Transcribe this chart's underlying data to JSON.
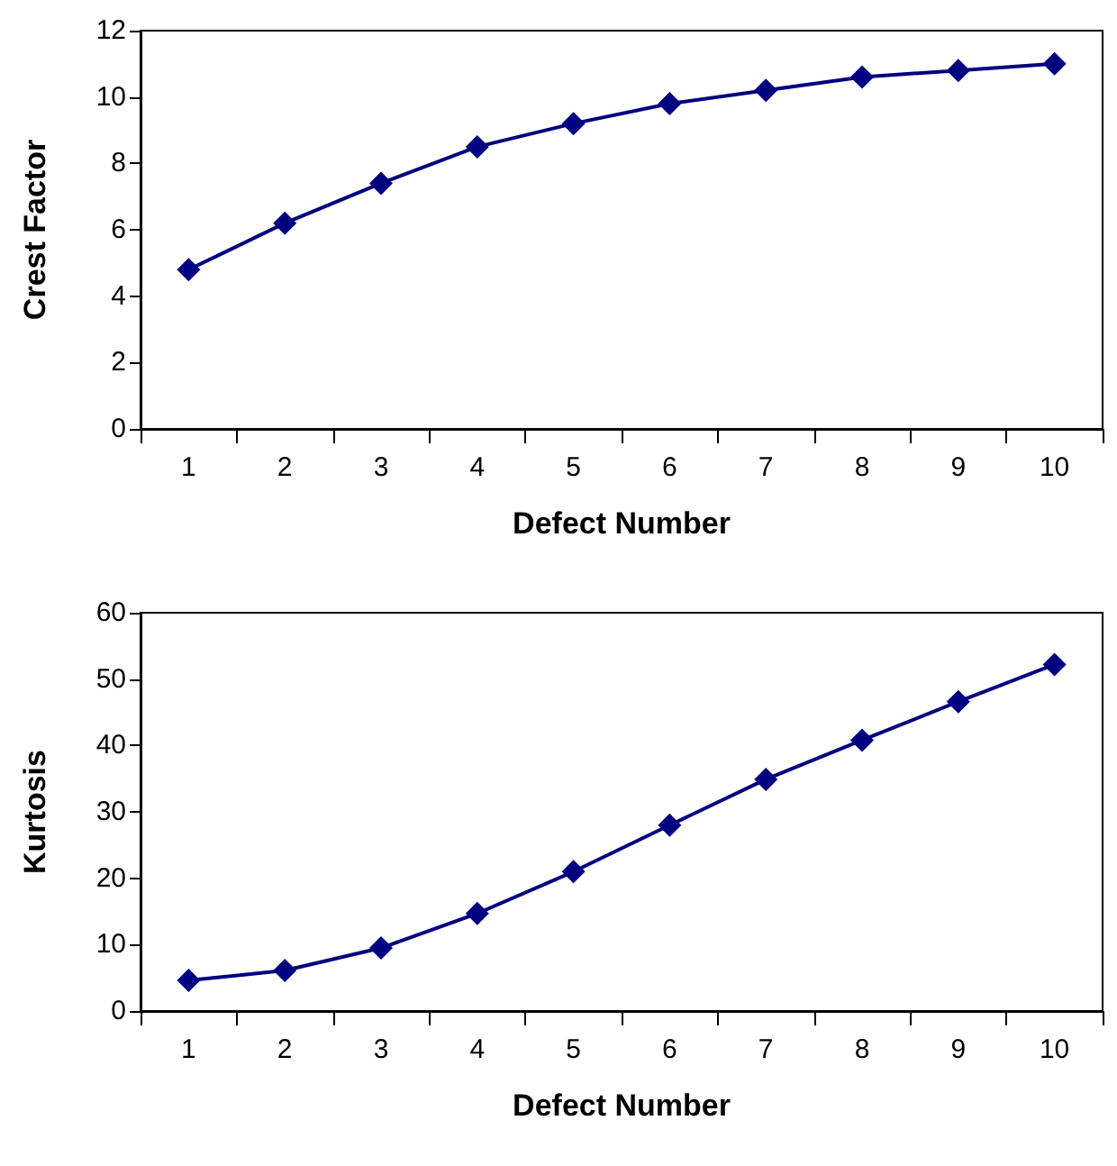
{
  "chart_data": [
    {
      "type": "line",
      "xlabel": "Defect Number",
      "ylabel": "Crest Factor",
      "categories": [
        "1",
        "2",
        "3",
        "4",
        "5",
        "6",
        "7",
        "8",
        "9",
        "10"
      ],
      "series": [
        {
          "color": "#000080",
          "values": [
            4.8,
            6.2,
            7.4,
            8.5,
            9.2,
            9.8,
            10.2,
            10.6,
            10.8,
            11.0
          ]
        }
      ],
      "ylim": [
        0,
        12
      ],
      "yticks": [
        0,
        2,
        4,
        6,
        8,
        10,
        12
      ],
      "grid": false,
      "marker": "diamond",
      "line_style": "solid"
    },
    {
      "type": "line",
      "xlabel": "Defect Number",
      "ylabel": "Kurtosis",
      "categories": [
        "1",
        "2",
        "3",
        "4",
        "5",
        "6",
        "7",
        "8",
        "9",
        "10"
      ],
      "series": [
        {
          "color": "#000080",
          "values": [
            4.6,
            6.1,
            9.5,
            14.7,
            21.0,
            28.0,
            34.9,
            40.8,
            46.6,
            52.2
          ]
        }
      ],
      "ylim": [
        0,
        60
      ],
      "yticks": [
        0,
        10,
        20,
        30,
        40,
        50,
        60
      ],
      "grid": false,
      "marker": "diamond",
      "line_style": "solid"
    }
  ]
}
